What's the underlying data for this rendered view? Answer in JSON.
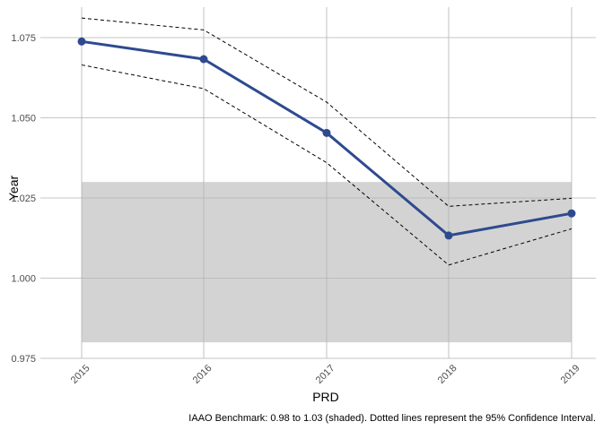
{
  "chart_data": {
    "type": "line",
    "title": "",
    "xlabel": "PRD",
    "ylabel": "Year",
    "caption": "IAAO Benchmark: 0.98 to 1.03 (shaded). Dotted lines represent the 95% Confidence Interval.",
    "categories": [
      "2015",
      "2016",
      "2017",
      "2018",
      "2019"
    ],
    "series": [
      {
        "values": [
          1.0738,
          1.0683,
          1.0453,
          1.0133,
          1.0202
        ]
      }
    ],
    "ci_upper": [
      1.0811,
      1.0774,
      1.0549,
      1.0224,
      1.0249
    ],
    "ci_lower": [
      1.0665,
      1.0591,
      1.036,
      1.0041,
      1.0154
    ],
    "benchmark_band": [
      0.98,
      1.03
    ],
    "yticks": [
      "0.975",
      "1.000",
      "1.025",
      "1.050",
      "1.075"
    ],
    "ylim": [
      0.975,
      1.0845
    ],
    "grid": true,
    "colors": {
      "line": "#2e4a8f",
      "band": "#d3d3d3",
      "grid": "#b3b3b3",
      "ci": "#000000"
    }
  }
}
